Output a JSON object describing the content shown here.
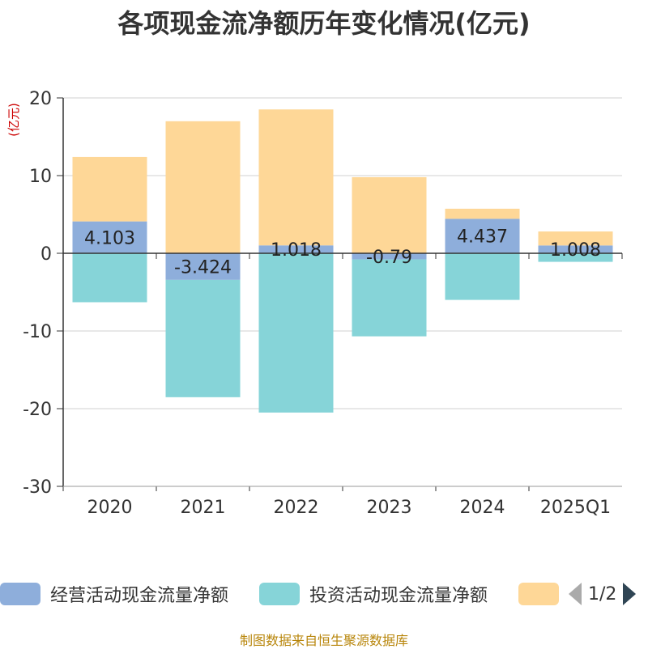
{
  "chart_data": {
    "type": "bar",
    "title": "各项现金流净额历年变化情况(亿元)",
    "ylabel": "(亿元)",
    "categories": [
      "2020",
      "2021",
      "2022",
      "2023",
      "2024",
      "2025Q1"
    ],
    "ylim": [
      -30,
      20
    ],
    "yticks": [
      20,
      10,
      0,
      -10,
      -20,
      -30
    ],
    "grid": true,
    "stacked": true,
    "series": [
      {
        "name": "经营活动现金流量净额",
        "color": "#8eaedb",
        "values": [
          4.103,
          -3.424,
          1.018,
          -0.79,
          4.437,
          1.008
        ],
        "labels": [
          "4.103",
          "-3.424",
          "1.018",
          "-0.79",
          "4.437",
          "1.008"
        ]
      },
      {
        "name": "投资活动现金流量净额",
        "color": "#86d4d8",
        "values": [
          -6.3,
          -15.1,
          -20.5,
          -9.9,
          -6.0,
          -1.1
        ]
      },
      {
        "name": "",
        "color": "#fed797",
        "values": [
          8.3,
          17.0,
          17.5,
          9.8,
          1.3,
          1.8
        ]
      }
    ]
  },
  "legend": {
    "page": "1/2"
  },
  "source": "制图数据来自恒生聚源数据库"
}
